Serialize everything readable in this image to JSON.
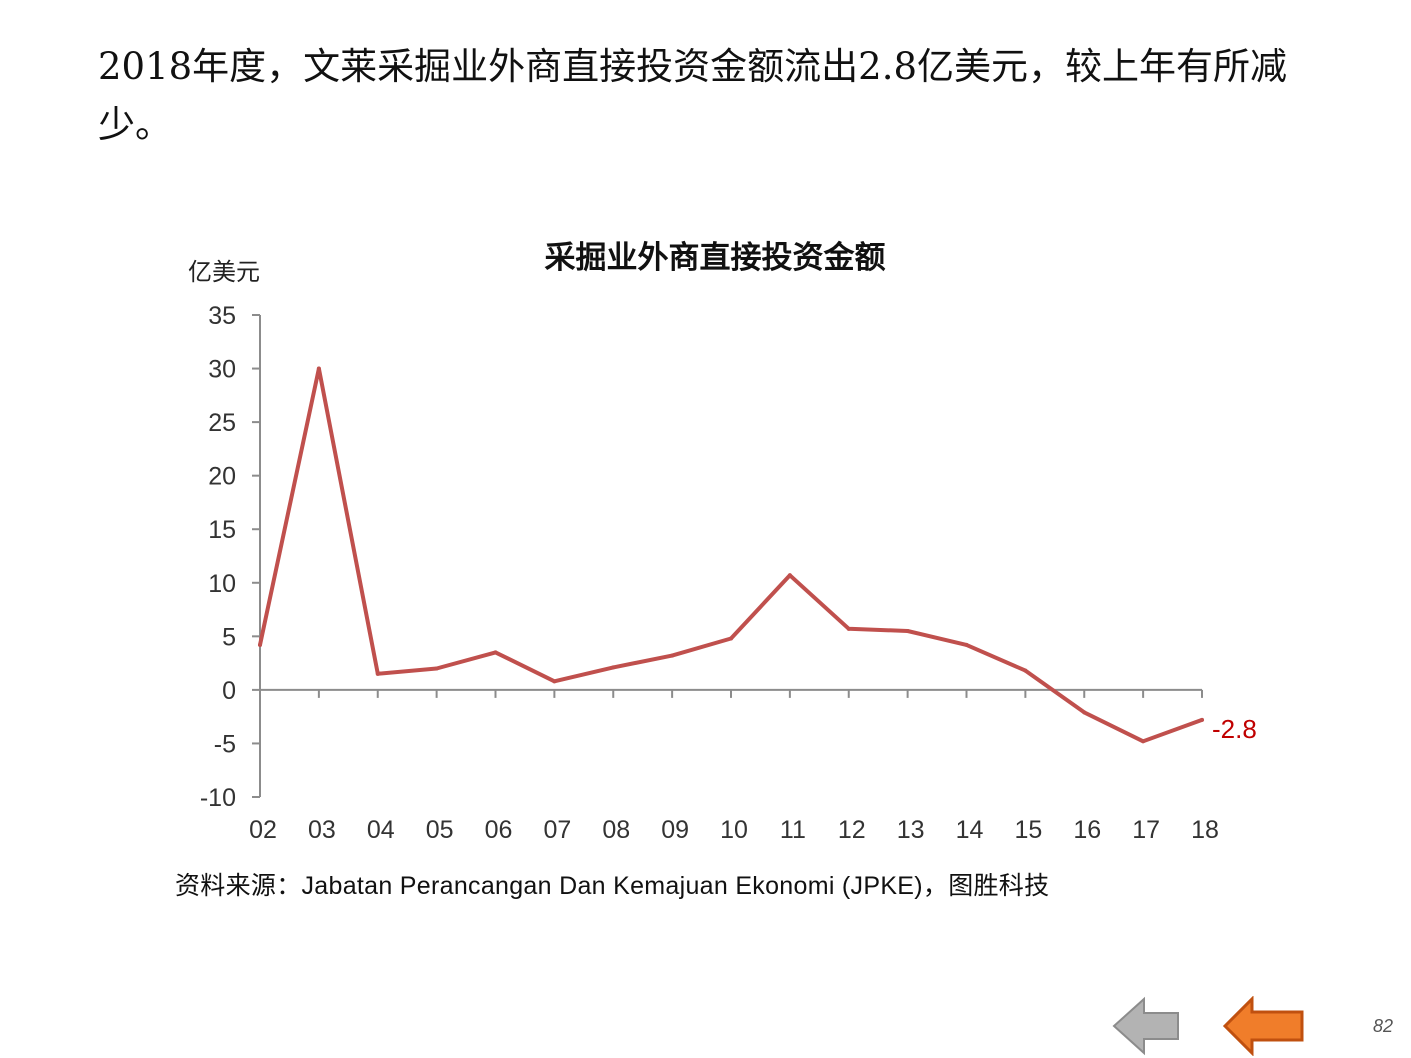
{
  "headline": "2018年度，文莱采掘业外商直接投资金额流出2.8亿美元，较上年有所减少。",
  "chart_data": {
    "type": "line",
    "title": "采掘业外商直接投资金额",
    "ylabel": "亿美元",
    "xlabel": "",
    "categories": [
      "02",
      "03",
      "04",
      "05",
      "06",
      "07",
      "08",
      "09",
      "10",
      "11",
      "12",
      "13",
      "14",
      "15",
      "16",
      "17",
      "18"
    ],
    "series": [
      {
        "values": [
          4.2,
          30.0,
          1.5,
          2.0,
          3.5,
          0.8,
          2.1,
          3.2,
          4.8,
          10.7,
          5.7,
          5.5,
          4.2,
          1.8,
          -2.1,
          -4.8,
          -2.8
        ],
        "color": "#c0504d"
      }
    ],
    "ylim": [
      -10,
      35
    ],
    "yticks": [
      35,
      30,
      25,
      20,
      15,
      10,
      5,
      0,
      -5,
      -10
    ],
    "end_label": "-2.8",
    "end_label_color": "#c00000",
    "grid": false
  },
  "source": "资料来源：Jabatan Perancangan Dan Kemajuan Ekonomi (JPKE)，图胜科技",
  "nav": {
    "back_color": "#b3b3b3",
    "forward_color": "#f07d2a"
  },
  "page_number": "82"
}
